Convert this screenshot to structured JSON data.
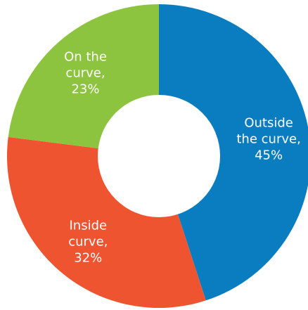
{
  "chart_data": {
    "type": "pie",
    "donut": true,
    "slices": [
      {
        "label_lines": [
          "Outside",
          "the curve,",
          "45%"
        ],
        "value": 45,
        "color": "#0a7dc1"
      },
      {
        "label_lines": [
          "Inside",
          "curve,",
          "32%"
        ],
        "value": 32,
        "color": "#ee5430"
      },
      {
        "label_lines": [
          "On the",
          "curve,",
          "23%"
        ],
        "value": 23,
        "color": "#8dc43f"
      }
    ],
    "start_angle_deg": 0,
    "direction": "clockwise",
    "legend": "none",
    "background": "#ffffff"
  }
}
